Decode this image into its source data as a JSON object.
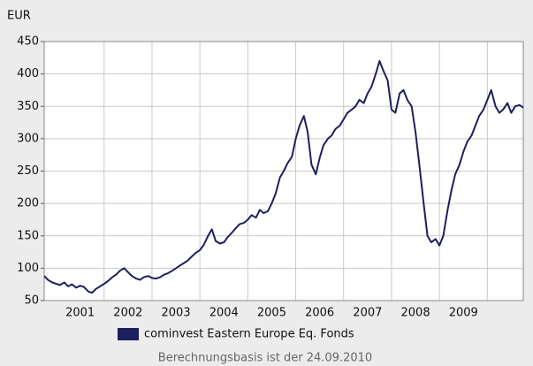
{
  "chart_data": {
    "type": "line",
    "y_unit_label": "EUR",
    "footer": "Berechnungsbasis ist der 24.09.2010",
    "year_labels": [
      "2001",
      "2002",
      "2003",
      "2004",
      "2005",
      "2006",
      "2007",
      "2008",
      "2009"
    ],
    "xlim": [
      2000.75,
      2010.75
    ],
    "xticks": [
      2002,
      2003,
      2004,
      2005,
      2006,
      2007,
      2008,
      2009,
      2010
    ],
    "ylim": [
      50,
      450
    ],
    "yticks": [
      50,
      100,
      150,
      200,
      250,
      300,
      350,
      400,
      450
    ],
    "grid": true,
    "x": [
      2000.75,
      2000.83,
      2000.92,
      2001.0,
      2001.08,
      2001.17,
      2001.25,
      2001.33,
      2001.42,
      2001.5,
      2001.58,
      2001.67,
      2001.75,
      2001.83,
      2001.92,
      2002.0,
      2002.08,
      2002.17,
      2002.25,
      2002.33,
      2002.42,
      2002.5,
      2002.58,
      2002.67,
      2002.75,
      2002.83,
      2002.92,
      2003.0,
      2003.08,
      2003.17,
      2003.25,
      2003.33,
      2003.42,
      2003.5,
      2003.58,
      2003.67,
      2003.75,
      2003.83,
      2003.92,
      2004.0,
      2004.08,
      2004.17,
      2004.25,
      2004.33,
      2004.42,
      2004.5,
      2004.58,
      2004.67,
      2004.75,
      2004.83,
      2004.92,
      2005.0,
      2005.08,
      2005.17,
      2005.25,
      2005.33,
      2005.42,
      2005.5,
      2005.58,
      2005.67,
      2005.75,
      2005.83,
      2005.92,
      2006.0,
      2006.08,
      2006.17,
      2006.25,
      2006.33,
      2006.42,
      2006.5,
      2006.58,
      2006.67,
      2006.75,
      2006.83,
      2006.92,
      2007.0,
      2007.08,
      2007.17,
      2007.25,
      2007.33,
      2007.42,
      2007.5,
      2007.58,
      2007.67,
      2007.75,
      2007.83,
      2007.92,
      2008.0,
      2008.08,
      2008.17,
      2008.25,
      2008.33,
      2008.42,
      2008.5,
      2008.58,
      2008.67,
      2008.75,
      2008.83,
      2008.92,
      2009.0,
      2009.08,
      2009.17,
      2009.25,
      2009.33,
      2009.42,
      2009.5,
      2009.58,
      2009.67,
      2009.75,
      2009.83,
      2009.92,
      2010.0,
      2010.08,
      2010.17,
      2010.25,
      2010.33,
      2010.42,
      2010.5,
      2010.58,
      2010.67,
      2010.75
    ],
    "series": [
      {
        "name": "cominvest Eastern Europe Eq. Fonds",
        "color": "#1e1f5e",
        "values": [
          88,
          82,
          78,
          76,
          74,
          78,
          72,
          75,
          70,
          73,
          71,
          64,
          62,
          68,
          72,
          76,
          80,
          86,
          90,
          96,
          100,
          94,
          88,
          84,
          82,
          86,
          88,
          85,
          84,
          86,
          90,
          92,
          96,
          100,
          104,
          108,
          112,
          118,
          124,
          128,
          136,
          150,
          160,
          142,
          138,
          140,
          148,
          155,
          162,
          168,
          170,
          175,
          182,
          178,
          190,
          185,
          188,
          200,
          215,
          240,
          250,
          262,
          272,
          300,
          320,
          335,
          310,
          260,
          245,
          270,
          290,
          300,
          305,
          315,
          320,
          330,
          340,
          345,
          350,
          360,
          355,
          370,
          380,
          400,
          420,
          405,
          390,
          345,
          340,
          370,
          375,
          360,
          350,
          310,
          260,
          200,
          150,
          140,
          145,
          135,
          150,
          190,
          220,
          245,
          260,
          280,
          295,
          305,
          320,
          335,
          345,
          360,
          375,
          350,
          340,
          345,
          355,
          340,
          350,
          352,
          348
        ]
      }
    ]
  }
}
